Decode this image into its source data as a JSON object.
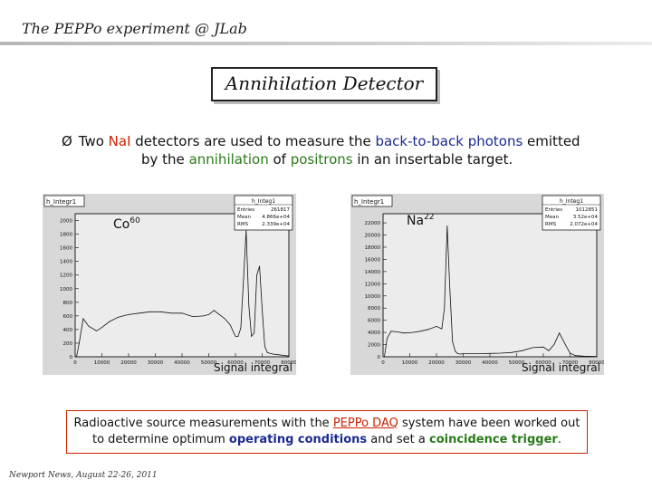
{
  "header": {
    "title": "The PEPPo experiment @ JLab"
  },
  "section_title": "Annihilation Detector",
  "bullet": {
    "arrow": "Ø",
    "p1": " Two ",
    "p2": "NaI",
    "p3": " detectors are used to measure the ",
    "p4": "back-to-back photons",
    "p5": " emitted",
    "p6": "by the ",
    "p7": "annihilation",
    "p8": " of ",
    "p9": "positrons",
    "p10": " in an insertable target."
  },
  "bottom_note": {
    "p1": "Radioactive source measurements with the ",
    "p2": "PEPPo DAQ",
    "p3": " system have been worked out",
    "p4": "to determine optimum ",
    "p5": "operating conditions",
    "p6": " and set a ",
    "p7": "coincidence trigger",
    "p8": "."
  },
  "footer": "Newport News, August 22-26, 2011",
  "colors": {
    "red": "#cc2200",
    "blue": "#1b2a8f",
    "green": "#2a7a1a"
  },
  "chart_data": [
    {
      "type": "line",
      "hist_name": "h_Integr1",
      "stats_title": "h_Integ1",
      "stats": [
        {
          "label": "Entries",
          "value": "261817"
        },
        {
          "label": "Mean",
          "value": "4.866e+04"
        },
        {
          "label": "RMS",
          "value": "2.339e+04"
        }
      ],
      "source_label": "Co",
      "source_sup": "60",
      "xlabel": "Signal integral",
      "xlim": [
        0,
        80000
      ],
      "ylim": [
        0,
        2100
      ],
      "xticks": [
        "0",
        "10000",
        "20000",
        "30000",
        "40000",
        "50000",
        "60000",
        "70000",
        "80000"
      ],
      "yticks": [
        "0",
        "200",
        "400",
        "600",
        "800",
        "1000",
        "1200",
        "1400",
        "1600",
        "1800",
        "2000"
      ],
      "x": [
        500,
        1500,
        3000,
        5000,
        8000,
        10000,
        13000,
        16000,
        20000,
        24000,
        28000,
        32000,
        36000,
        40000,
        44000,
        48000,
        50000,
        52000,
        54000,
        56000,
        58000,
        60000,
        61000,
        62000,
        63000,
        64000,
        65000,
        66000,
        67000,
        68000,
        69000,
        70000,
        71000,
        72000,
        74000,
        76000,
        78000,
        80000
      ],
      "y": [
        0,
        200,
        560,
        450,
        380,
        430,
        520,
        580,
        620,
        640,
        660,
        660,
        640,
        640,
        590,
        600,
        620,
        680,
        620,
        560,
        470,
        300,
        300,
        420,
        1100,
        1860,
        750,
        300,
        350,
        1200,
        1330,
        700,
        150,
        60,
        40,
        30,
        20,
        10
      ]
    },
    {
      "type": "line",
      "hist_name": "h_Integr1",
      "stats_title": "h_Integ1",
      "stats": [
        {
          "label": "Entries",
          "value": "1012851"
        },
        {
          "label": "Mean",
          "value": "3.52e+04"
        },
        {
          "label": "RMS",
          "value": "2.072e+04"
        }
      ],
      "source_label": "Na",
      "source_sup": "22",
      "xlabel": "Signal integral",
      "xlim": [
        0,
        80000
      ],
      "ylim": [
        0,
        23500
      ],
      "xticks": [
        "0",
        "10000",
        "20000",
        "30000",
        "40000",
        "50000",
        "60000",
        "70000",
        "80000"
      ],
      "yticks": [
        "0",
        "2000",
        "4000",
        "6000",
        "8000",
        "10000",
        "12000",
        "14000",
        "16000",
        "18000",
        "20000",
        "22000"
      ],
      "x": [
        500,
        1500,
        3000,
        5000,
        8000,
        11000,
        14000,
        17000,
        20000,
        22000,
        23000,
        24000,
        25000,
        26000,
        27000,
        28000,
        29000,
        30000,
        33000,
        36000,
        40000,
        44000,
        48000,
        52000,
        56000,
        60000,
        62000,
        64000,
        66000,
        68000,
        70000,
        72000,
        75000,
        80000
      ],
      "y": [
        0,
        3000,
        4200,
        4100,
        3900,
        4000,
        4200,
        4500,
        5000,
        4600,
        8000,
        21500,
        11000,
        2500,
        900,
        500,
        450,
        500,
        500,
        500,
        550,
        600,
        700,
        1000,
        1500,
        1600,
        1000,
        2000,
        3900,
        2200,
        600,
        200,
        100,
        50
      ]
    }
  ]
}
